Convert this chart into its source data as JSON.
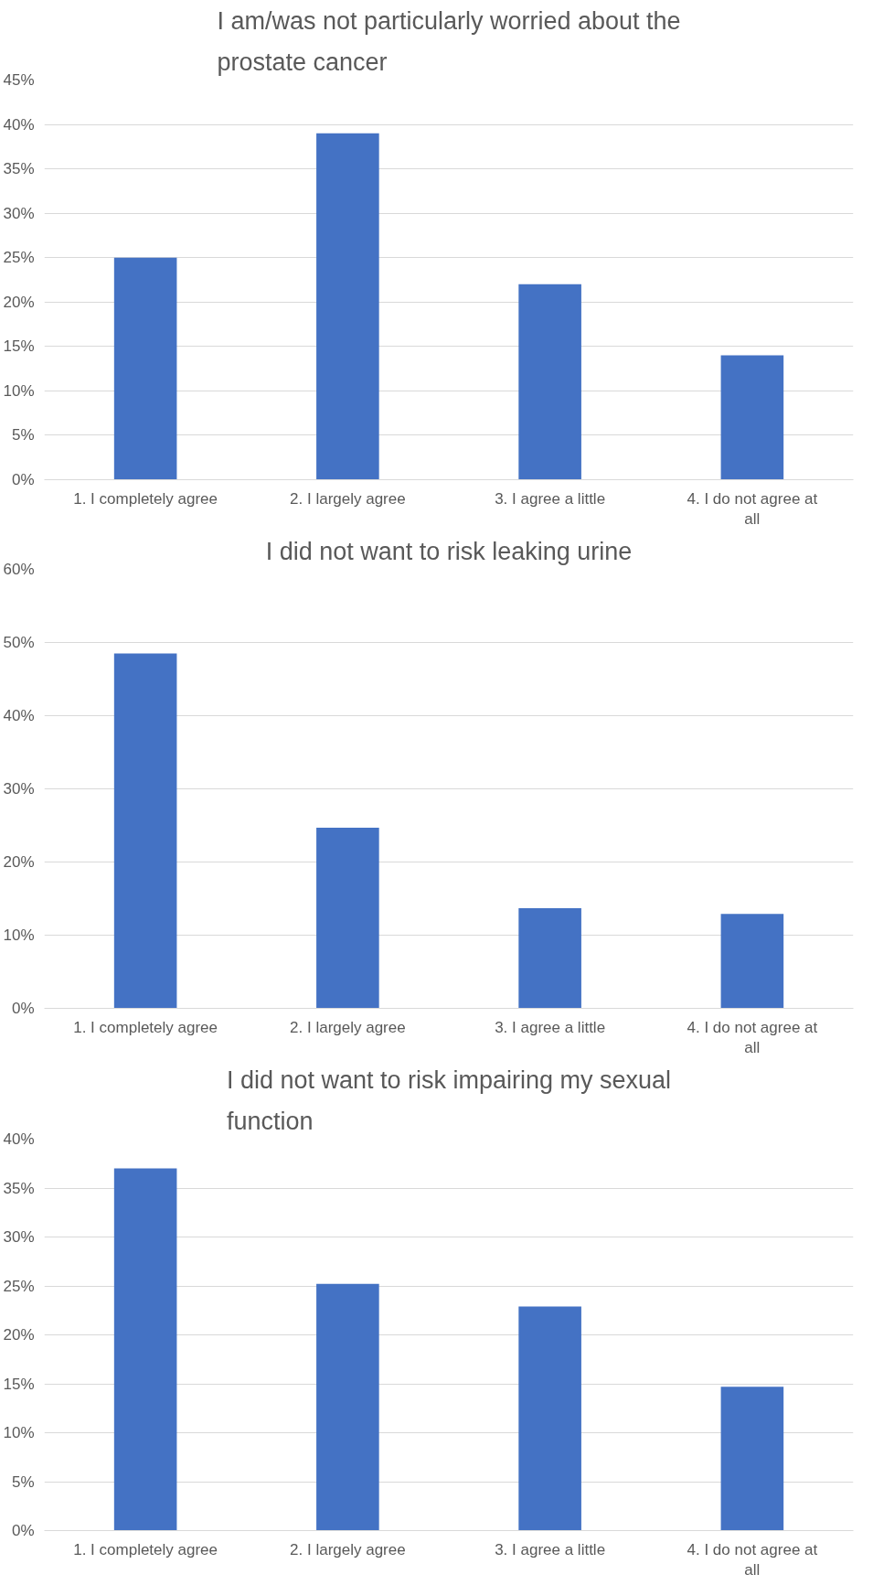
{
  "chart_data": [
    {
      "type": "bar",
      "title": "I am/was not particularly worried about the prostate cancer",
      "categories": [
        "1. I completely agree",
        "2. I largely agree",
        "3. I agree a little",
        "4. I do not agree at all"
      ],
      "values": [
        25,
        39,
        22,
        14
      ],
      "color": "#4472c4",
      "ylim": [
        0,
        45
      ],
      "yticks": [
        {
          "value": 0,
          "label": "0%"
        },
        {
          "value": 5,
          "label": "5%"
        },
        {
          "value": 10,
          "label": "10%"
        },
        {
          "value": 15,
          "label": "15%"
        },
        {
          "value": 20,
          "label": "20%"
        },
        {
          "value": 25,
          "label": "25%"
        },
        {
          "value": 30,
          "label": "30%"
        },
        {
          "value": 35,
          "label": "35%"
        },
        {
          "value": 40,
          "label": "40%"
        },
        {
          "value": 45,
          "label": "45%"
        }
      ],
      "grid": "y"
    },
    {
      "type": "bar",
      "title": "I did not want to risk leaking urine",
      "categories": [
        "1. I completely agree",
        "2. I largely agree",
        "3. I agree a little",
        "4. I do not agree at all"
      ],
      "values": [
        48.5,
        24.7,
        13.7,
        12.9
      ],
      "color": "#4472c4",
      "ylim": [
        0,
        60
      ],
      "yticks": [
        {
          "value": 0,
          "label": "0%"
        },
        {
          "value": 10,
          "label": "10%"
        },
        {
          "value": 20,
          "label": "20%"
        },
        {
          "value": 30,
          "label": "30%"
        },
        {
          "value": 40,
          "label": "40%"
        },
        {
          "value": 50,
          "label": "50%"
        },
        {
          "value": 60,
          "label": "60%"
        }
      ],
      "grid": "y"
    },
    {
      "type": "bar",
      "title": "I did not want to risk impairing my sexual function",
      "categories": [
        "1. I completely agree",
        "2. I largely agree",
        "3. I agree a little",
        "4. I do not agree at all"
      ],
      "values": [
        37,
        25.2,
        22.9,
        14.7
      ],
      "color": "#4472c4",
      "ylim": [
        0,
        40
      ],
      "yticks": [
        {
          "value": 0,
          "label": "0%"
        },
        {
          "value": 5,
          "label": "5%"
        },
        {
          "value": 10,
          "label": "10%"
        },
        {
          "value": 15,
          "label": "15%"
        },
        {
          "value": 20,
          "label": "20%"
        },
        {
          "value": 25,
          "label": "25%"
        },
        {
          "value": 30,
          "label": "30%"
        },
        {
          "value": 35,
          "label": "35%"
        },
        {
          "value": 40,
          "label": "40%"
        }
      ],
      "grid": "y"
    }
  ]
}
